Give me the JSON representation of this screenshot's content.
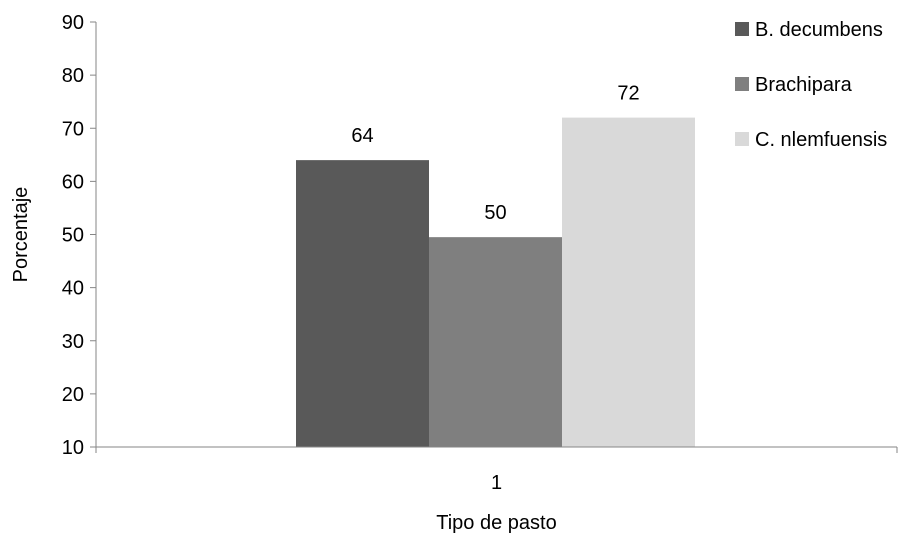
{
  "chart_data": {
    "type": "bar",
    "title": "",
    "xlabel": "Tipo de pasto",
    "ylabel": "Porcentaje",
    "categories": [
      "1"
    ],
    "ylim": [
      10,
      90
    ],
    "yticks": [
      "10",
      "20",
      "30",
      "40",
      "50",
      "60",
      "70",
      "80",
      "90"
    ],
    "grid": false,
    "legend_position": "right",
    "series": [
      {
        "name": "B. decumbens",
        "values": [
          64
        ],
        "label": "64",
        "color": "#595959"
      },
      {
        "name": "Brachipara",
        "values": [
          49.5
        ],
        "label": "50",
        "color": "#7f7f7f"
      },
      {
        "name": "C. nlemfuensis",
        "values": [
          72
        ],
        "label": "72",
        "color": "#d9d9d9"
      }
    ],
    "axis_color": "#868686"
  }
}
